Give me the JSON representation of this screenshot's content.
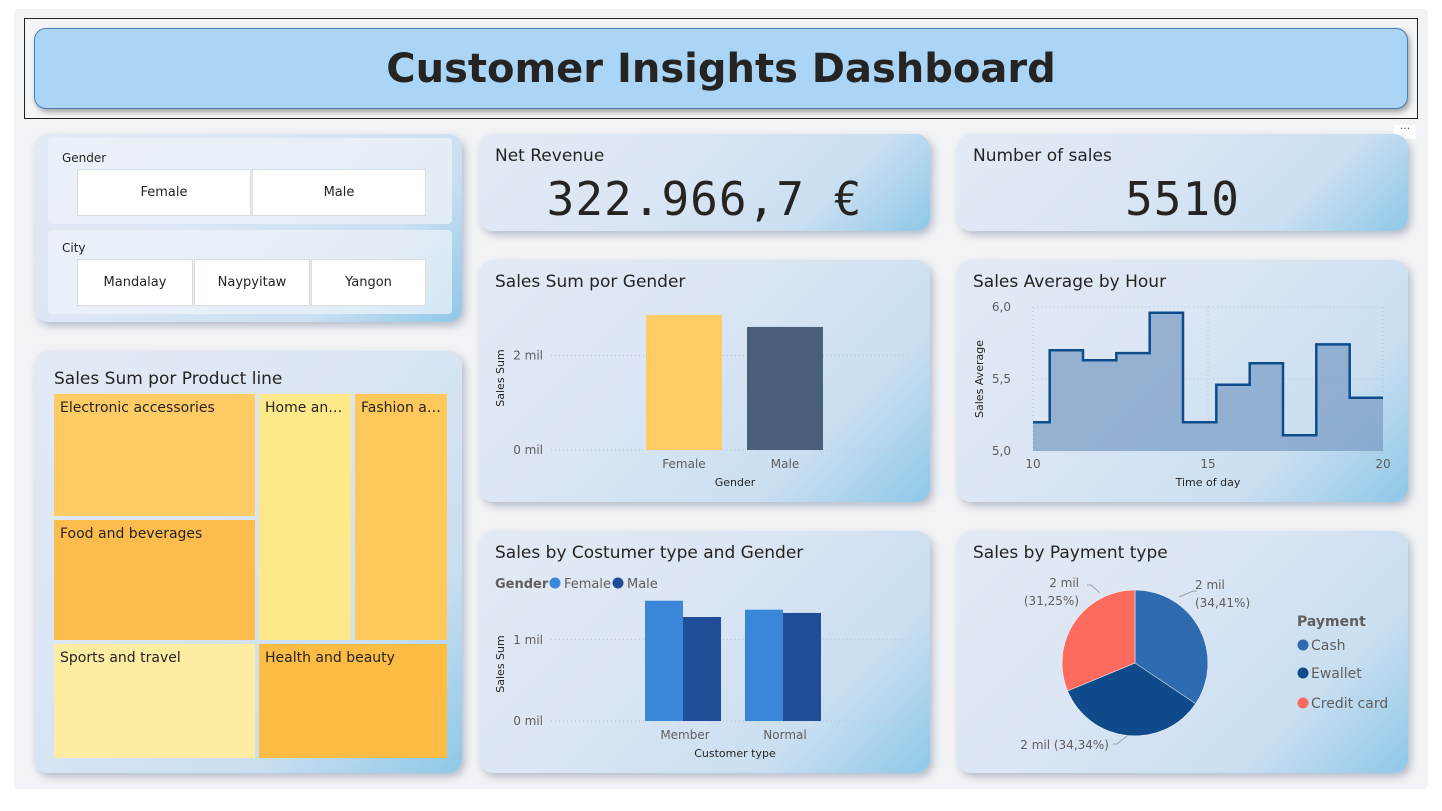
{
  "header": {
    "title": "Customer Insights Dashboard",
    "more_label": "···"
  },
  "slicers": {
    "gender": {
      "label": "Gender",
      "options": [
        "Female",
        "Male"
      ]
    },
    "city": {
      "label": "City",
      "options": [
        "Mandalay",
        "Naypyitaw",
        "Yangon"
      ]
    }
  },
  "kpis": {
    "net_revenue": {
      "label": "Net Revenue",
      "value": "322.966,7 €"
    },
    "number_of_sales": {
      "label": "Number of sales",
      "value": "5510"
    }
  },
  "treemap": {
    "title": "Sales Sum por Product line",
    "cells": [
      {
        "label": "Electronic accessories",
        "color": "#fecb65"
      },
      {
        "label": "Home and...",
        "color": "#fde88a"
      },
      {
        "label": "Fashion ac...",
        "color": "#fec95a"
      },
      {
        "label": "Food and beverages",
        "color": "#fdbd4d"
      },
      {
        "label": "Sports and travel",
        "color": "#fdeda3"
      },
      {
        "label": "Health and beauty",
        "color": "#fdbd45"
      }
    ]
  },
  "colors": {
    "female": "#fecd64",
    "male": "#4a6078",
    "member_female": "#3a86d8",
    "member_male": "#1f4e96",
    "cash": "#2e6bb0",
    "ewallet": "#0f4a8a",
    "credit": "#fd6b5e",
    "area": "#7c9fc7",
    "area_line": "#0f4c8c"
  },
  "chart_data": [
    {
      "id": "gender_bar",
      "type": "bar",
      "title": "Sales Sum por Gender",
      "categories": [
        "Female",
        "Male"
      ],
      "values": [
        2.85,
        2.6
      ],
      "xlabel": "Gender",
      "ylabel": "Sales Sum",
      "yticks": [
        "0 mil",
        "2 mil"
      ],
      "ylim": [
        0,
        3
      ]
    },
    {
      "id": "hour_area",
      "type": "area",
      "title": "Sales Average by Hour",
      "x": [
        10,
        11,
        12,
        13,
        14,
        15,
        16,
        17,
        18,
        19,
        20
      ],
      "values": [
        5.2,
        5.7,
        5.63,
        5.68,
        5.96,
        5.2,
        5.46,
        5.61,
        5.11,
        5.74,
        5.37
      ],
      "xlabel": "Time of day",
      "ylabel": "Sales Average",
      "xticks": [
        "10",
        "15",
        "20"
      ],
      "yticks": [
        "5,0",
        "5,5",
        "6,0"
      ],
      "ylim": [
        5.0,
        6.0
      ],
      "xlim": [
        10,
        20
      ]
    },
    {
      "id": "customer_bar",
      "type": "bar",
      "title": "Sales by Costumer type and Gender",
      "legend_title": "Gender",
      "categories": [
        "Member",
        "Normal"
      ],
      "series": [
        {
          "name": "Female",
          "values": [
            1.48,
            1.37
          ]
        },
        {
          "name": "Male",
          "values": [
            1.28,
            1.33
          ]
        }
      ],
      "xlabel": "Customer type",
      "ylabel": "Sales Sum",
      "yticks": [
        "0 mil",
        "1 mil"
      ],
      "ylim": [
        0,
        1.6
      ]
    },
    {
      "id": "payment_pie",
      "type": "pie",
      "title": "Sales by Payment type",
      "legend_title": "Payment",
      "slices": [
        {
          "name": "Cash",
          "value": 34.41,
          "label_top": "2 mil",
          "label_bottom": "(34,41%)"
        },
        {
          "name": "Ewallet",
          "value": 34.34,
          "label_top": "2 mil (34,34%)",
          "label_bottom": ""
        },
        {
          "name": "Credit card",
          "value": 31.25,
          "label_top": "2 mil",
          "label_bottom": "(31,25%)"
        }
      ]
    }
  ]
}
